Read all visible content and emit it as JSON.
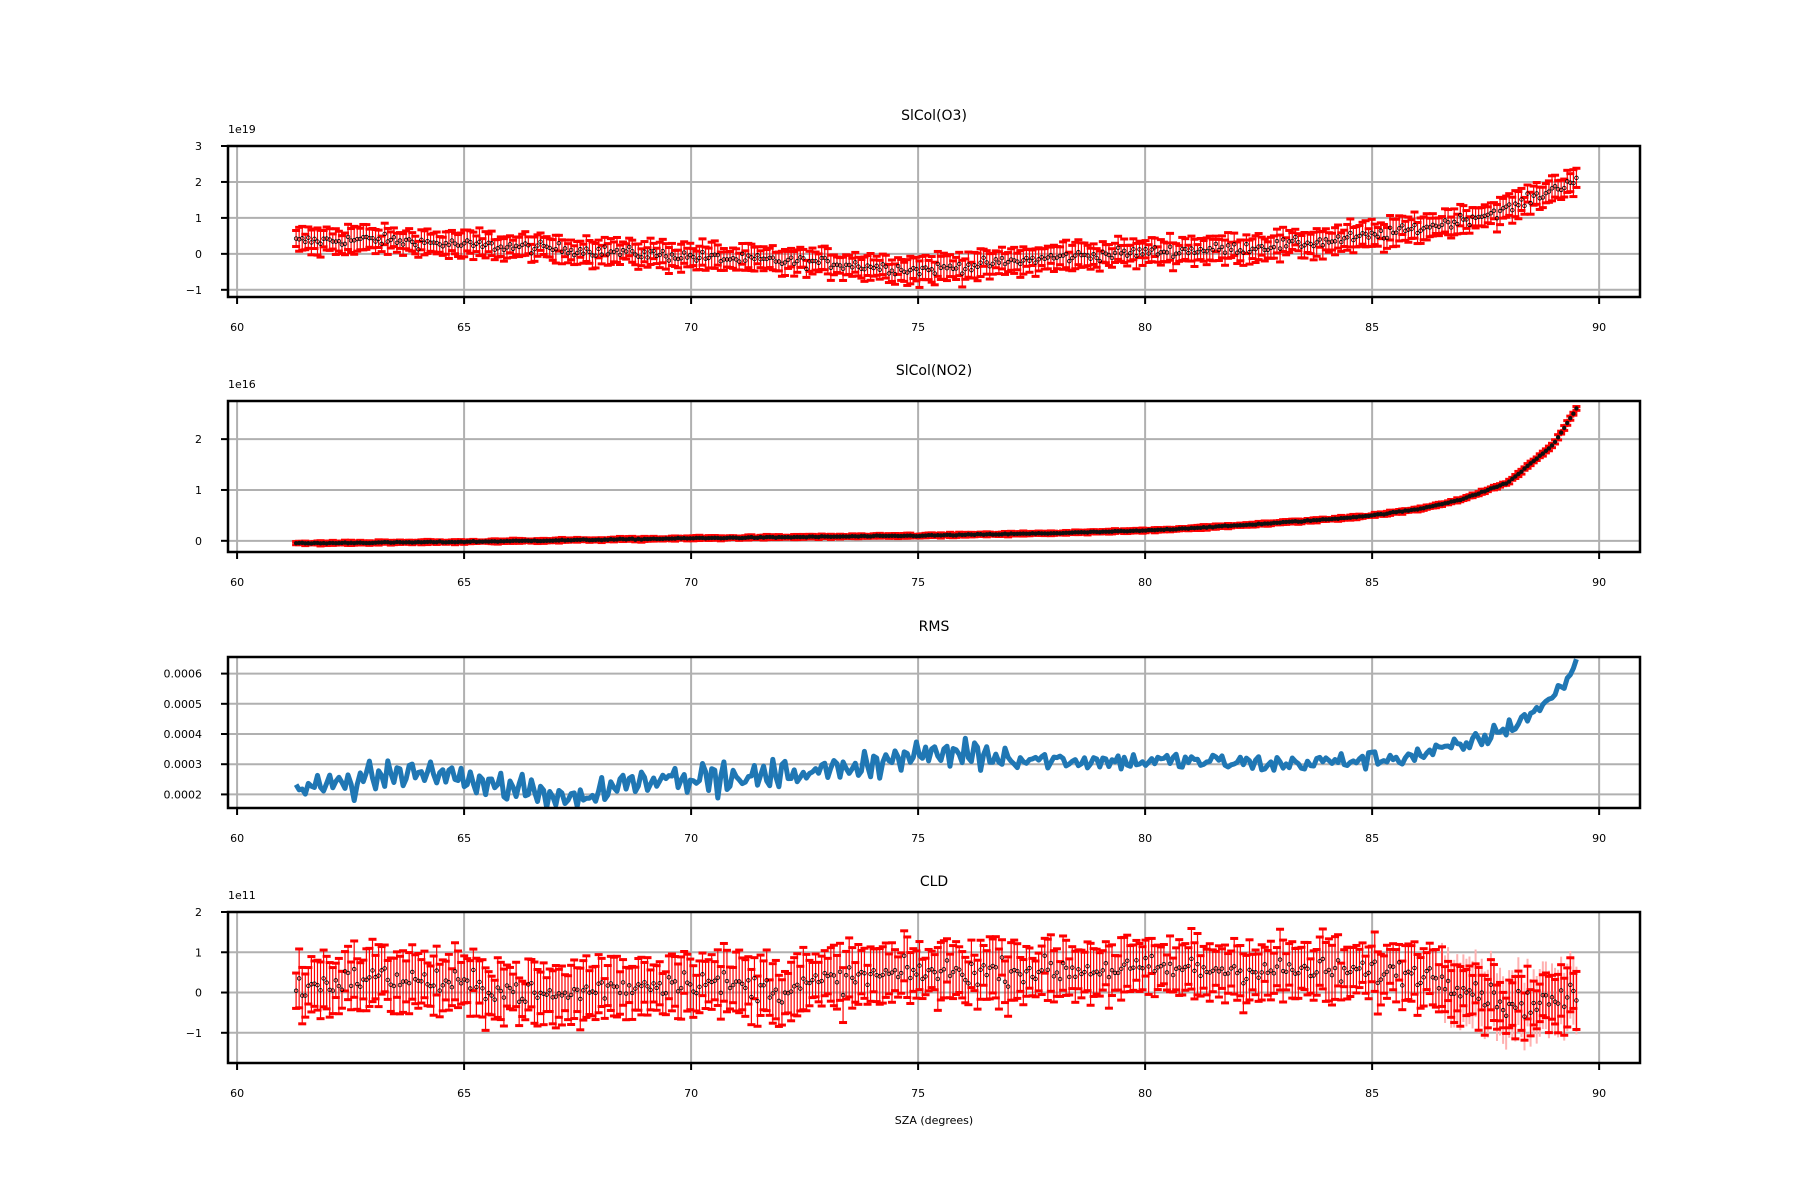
{
  "chart_data": [
    {
      "type": "scatter",
      "title": "SlCol(O3)",
      "offset_label": "1e19",
      "xlim": [
        59.8,
        90.9
      ],
      "ylim": [
        -1.2,
        3.0
      ],
      "xticks": [
        60,
        65,
        70,
        75,
        80,
        85,
        90
      ],
      "yticks": [
        -1,
        0,
        1,
        2,
        3
      ],
      "ytick_labels": [
        "−1",
        "0",
        "1",
        "2",
        "3"
      ],
      "grid": true,
      "style": "errorbar",
      "x_range": [
        61.3,
        89.5
      ],
      "trend": [
        [
          61.3,
          0.35
        ],
        [
          63,
          0.4
        ],
        [
          65,
          0.25
        ],
        [
          67,
          0.15
        ],
        [
          69,
          0.0
        ],
        [
          71,
          -0.15
        ],
        [
          73,
          -0.25
        ],
        [
          75,
          -0.45
        ],
        [
          76,
          -0.35
        ],
        [
          78,
          -0.1
        ],
        [
          80,
          0.05
        ],
        [
          82,
          0.15
        ],
        [
          84,
          0.35
        ],
        [
          85,
          0.5
        ],
        [
          86,
          0.7
        ],
        [
          87,
          0.95
        ],
        [
          88,
          1.25
        ],
        [
          89,
          1.8
        ],
        [
          89.5,
          2.1
        ]
      ],
      "noise": 0.15,
      "err": 0.3,
      "series": [
        {
          "values": []
        }
      ]
    },
    {
      "type": "scatter",
      "title": "SlCol(NO2)",
      "offset_label": "1e16",
      "xlim": [
        59.8,
        90.9
      ],
      "ylim": [
        -0.22,
        2.75
      ],
      "xticks": [
        60,
        65,
        70,
        75,
        80,
        85,
        90
      ],
      "yticks": [
        0,
        1,
        2
      ],
      "ytick_labels": [
        "0",
        "1",
        "2"
      ],
      "grid": true,
      "style": "errorbar",
      "x_range": [
        61.3,
        89.5
      ],
      "trend": [
        [
          61.3,
          -0.05
        ],
        [
          65,
          -0.02
        ],
        [
          70,
          0.05
        ],
        [
          75,
          0.1
        ],
        [
          78,
          0.15
        ],
        [
          80,
          0.2
        ],
        [
          82,
          0.3
        ],
        [
          84,
          0.42
        ],
        [
          85,
          0.5
        ],
        [
          86,
          0.62
        ],
        [
          87,
          0.82
        ],
        [
          88,
          1.15
        ],
        [
          89,
          1.9
        ],
        [
          89.5,
          2.6
        ]
      ],
      "noise": 0.01,
      "err": 0.04,
      "series": [
        {
          "values": []
        }
      ]
    },
    {
      "type": "line",
      "title": "RMS",
      "offset_label": "",
      "xlim": [
        59.8,
        90.9
      ],
      "ylim": [
        0.000155,
        0.000655
      ],
      "xticks": [
        60,
        65,
        70,
        75,
        80,
        85,
        90
      ],
      "yticks": [
        0.0002,
        0.0003,
        0.0004,
        0.0005,
        0.0006
      ],
      "ytick_labels": [
        "0.0002",
        "0.0003",
        "0.0004",
        "0.0005",
        "0.0006"
      ],
      "grid": true,
      "style": "line",
      "color": "#1f77b4",
      "x_range": [
        61.3,
        89.5
      ],
      "trend": [
        [
          61.3,
          0.00022
        ],
        [
          62.5,
          0.00024
        ],
        [
          63.5,
          0.00027
        ],
        [
          64.5,
          0.00027
        ],
        [
          65.5,
          0.00023
        ],
        [
          66.5,
          0.00021
        ],
        [
          67.6,
          0.000185
        ],
        [
          68.5,
          0.00024
        ],
        [
          69.5,
          0.00026
        ],
        [
          71,
          0.00025
        ],
        [
          73,
          0.00028
        ],
        [
          75,
          0.00033
        ],
        [
          76,
          0.00034
        ],
        [
          77,
          0.00032
        ],
        [
          79,
          0.00031
        ],
        [
          81,
          0.00031
        ],
        [
          83,
          0.0003
        ],
        [
          85,
          0.000315
        ],
        [
          86,
          0.00033
        ],
        [
          87,
          0.00036
        ],
        [
          88,
          0.00042
        ],
        [
          89,
          0.00052
        ],
        [
          89.5,
          0.000635
        ]
      ],
      "noise": 3e-05,
      "err": 0,
      "series": [
        {
          "values": []
        }
      ]
    },
    {
      "type": "scatter",
      "title": "CLD",
      "offset_label": "1e11",
      "xlabel": "SZA (degrees)",
      "xlim": [
        59.8,
        90.9
      ],
      "ylim": [
        -1.75,
        2.0
      ],
      "xticks": [
        60,
        65,
        70,
        75,
        80,
        85,
        90
      ],
      "yticks": [
        -1,
        0,
        1,
        2
      ],
      "ytick_labels": [
        "−1",
        "0",
        "1",
        "2"
      ],
      "grid": true,
      "style": "errorbar",
      "x_range": [
        61.3,
        89.5
      ],
      "trend": [
        [
          61.3,
          0.1
        ],
        [
          63,
          0.4
        ],
        [
          65,
          0.2
        ],
        [
          67,
          -0.1
        ],
        [
          68,
          0.1
        ],
        [
          70,
          0.3
        ],
        [
          72,
          0.05
        ],
        [
          73,
          0.3
        ],
        [
          75,
          0.5
        ],
        [
          78,
          0.55
        ],
        [
          80,
          0.6
        ],
        [
          83,
          0.55
        ],
        [
          86,
          0.5
        ],
        [
          87,
          0.2
        ],
        [
          88,
          -0.3
        ],
        [
          89,
          -0.2
        ],
        [
          89.5,
          -0.1
        ]
      ],
      "noise": 0.3,
      "err": 0.6,
      "series": [
        {
          "values": []
        }
      ]
    }
  ],
  "xtick_labels": [
    "60",
    "65",
    "70",
    "75",
    "80",
    "85",
    "90"
  ]
}
